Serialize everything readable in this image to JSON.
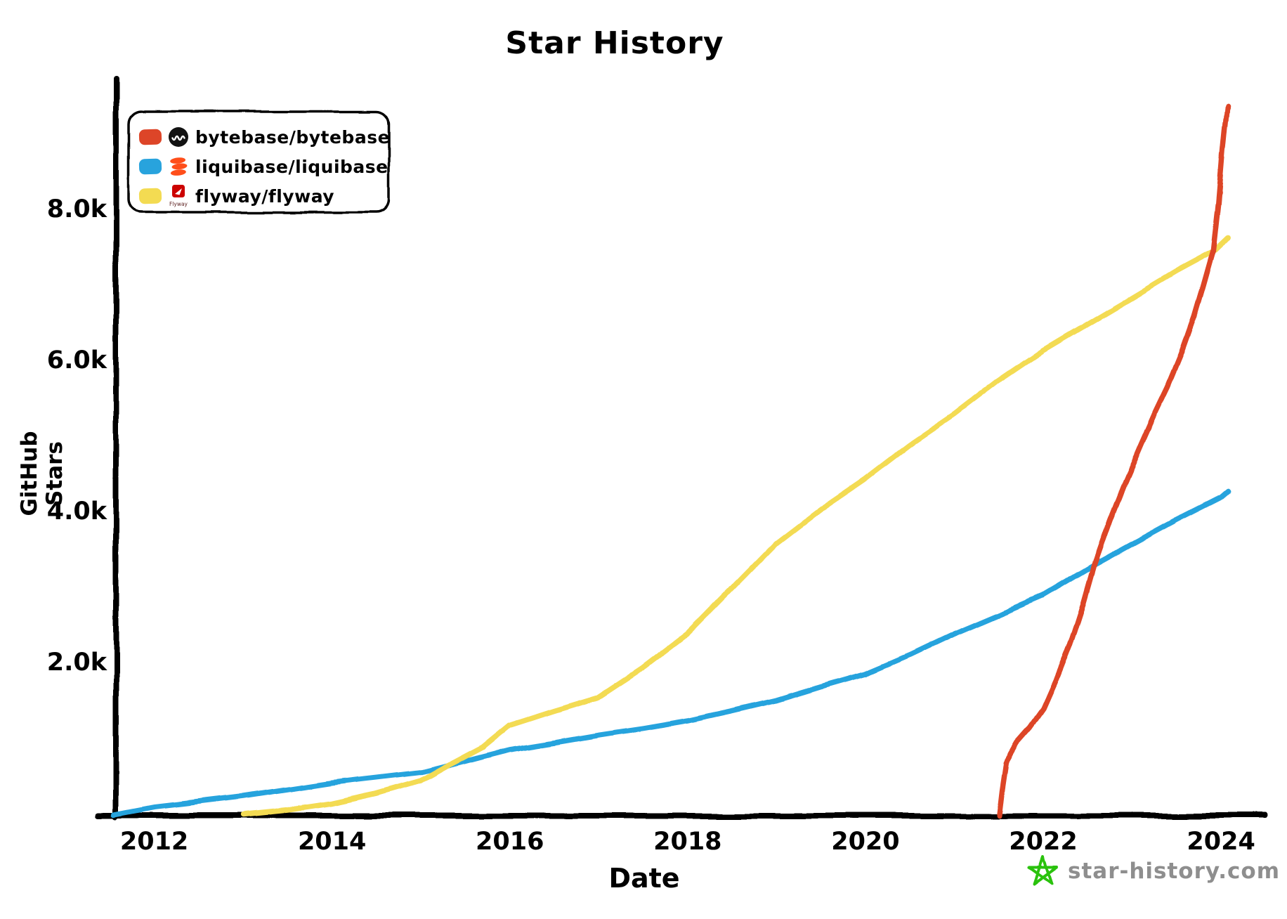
{
  "title": "Star History",
  "watermark": {
    "text": "star-history.com",
    "star_color": "#2bc20e",
    "text_color": "#8e8e8e"
  },
  "legend": {
    "items": [
      {
        "label": "bytebase/bytebase",
        "color": "#dd4528",
        "icon": "bytebase-logo"
      },
      {
        "label": "liquibase/liquibase",
        "color": "#28a3dd",
        "icon": "liquibase-logo"
      },
      {
        "label": "flyway/flyway",
        "color": "#f3db52",
        "icon": "flyway-logo"
      }
    ]
  },
  "chart_data": {
    "type": "line",
    "title": "Star History",
    "xlabel": "Date",
    "ylabel": "GitHub Stars",
    "grid": false,
    "legend_position": "top-left",
    "xlim": [
      2011.45,
      2024.41
    ],
    "ylim": [
      0,
      9720
    ],
    "x_ticks": [
      2012,
      2014,
      2016,
      2018,
      2020,
      2022,
      2024
    ],
    "x_tick_labels": [
      "2012",
      "2014",
      "2016",
      "2018",
      "2020",
      "2022",
      "2024"
    ],
    "y_ticks": [
      2000,
      4000,
      6000,
      8000
    ],
    "y_tick_labels": [
      "2.0k",
      "4.0k",
      "6.0k",
      "8.0k"
    ],
    "series": [
      {
        "name": "liquibase/liquibase",
        "color": "#28a3dd",
        "points": [
          [
            2011.55,
            0
          ],
          [
            2012,
            100
          ],
          [
            2012.5,
            170
          ],
          [
            2013,
            240
          ],
          [
            2013.5,
            330
          ],
          [
            2014,
            420
          ],
          [
            2014.5,
            490
          ],
          [
            2015,
            560
          ],
          [
            2015.3,
            650
          ],
          [
            2015.65,
            760
          ],
          [
            2016,
            865
          ],
          [
            2016.5,
            960
          ],
          [
            2017,
            1060
          ],
          [
            2017.5,
            1150
          ],
          [
            2018,
            1250
          ],
          [
            2018.5,
            1380
          ],
          [
            2019,
            1520
          ],
          [
            2019.5,
            1700
          ],
          [
            2020,
            1870
          ],
          [
            2020.5,
            2120
          ],
          [
            2021,
            2400
          ],
          [
            2021.5,
            2650
          ],
          [
            2022,
            2900
          ],
          [
            2022.57,
            3300
          ],
          [
            2023,
            3580
          ],
          [
            2023.5,
            3900
          ],
          [
            2024,
            4200
          ],
          [
            2024.08,
            4280
          ]
        ]
      },
      {
        "name": "flyway/flyway",
        "color": "#f3db52",
        "points": [
          [
            2013.0,
            0
          ],
          [
            2013.5,
            60
          ],
          [
            2014,
            150
          ],
          [
            2014.5,
            280
          ],
          [
            2015,
            450
          ],
          [
            2015.3,
            650
          ],
          [
            2015.7,
            900
          ],
          [
            2016,
            1190
          ],
          [
            2016.5,
            1380
          ],
          [
            2017,
            1560
          ],
          [
            2017.5,
            1950
          ],
          [
            2018,
            2400
          ],
          [
            2018.5,
            3000
          ],
          [
            2019,
            3600
          ],
          [
            2019.5,
            4050
          ],
          [
            2020,
            4450
          ],
          [
            2020.5,
            4900
          ],
          [
            2021,
            5300
          ],
          [
            2021.5,
            5750
          ],
          [
            2022,
            6150
          ],
          [
            2022.5,
            6500
          ],
          [
            2023,
            6850
          ],
          [
            2023.5,
            7200
          ],
          [
            2023.91,
            7460
          ],
          [
            2024.08,
            7650
          ]
        ]
      },
      {
        "name": "bytebase/bytebase",
        "color": "#dd4528",
        "points": [
          [
            2021.5,
            0
          ],
          [
            2021.53,
            300
          ],
          [
            2021.58,
            700
          ],
          [
            2021.7,
            950
          ],
          [
            2021.85,
            1150
          ],
          [
            2022.0,
            1400
          ],
          [
            2022.15,
            1800
          ],
          [
            2022.3,
            2250
          ],
          [
            2022.45,
            2800
          ],
          [
            2022.57,
            3300
          ],
          [
            2022.75,
            3900
          ],
          [
            2022.9,
            4350
          ],
          [
            2023.1,
            4900
          ],
          [
            2023.25,
            5300
          ],
          [
            2023.4,
            5670
          ],
          [
            2023.55,
            6100
          ],
          [
            2023.7,
            6600
          ],
          [
            2023.8,
            7000
          ],
          [
            2023.91,
            7460
          ],
          [
            2023.97,
            8100
          ],
          [
            2024.02,
            8800
          ],
          [
            2024.07,
            9400
          ]
        ]
      }
    ]
  }
}
